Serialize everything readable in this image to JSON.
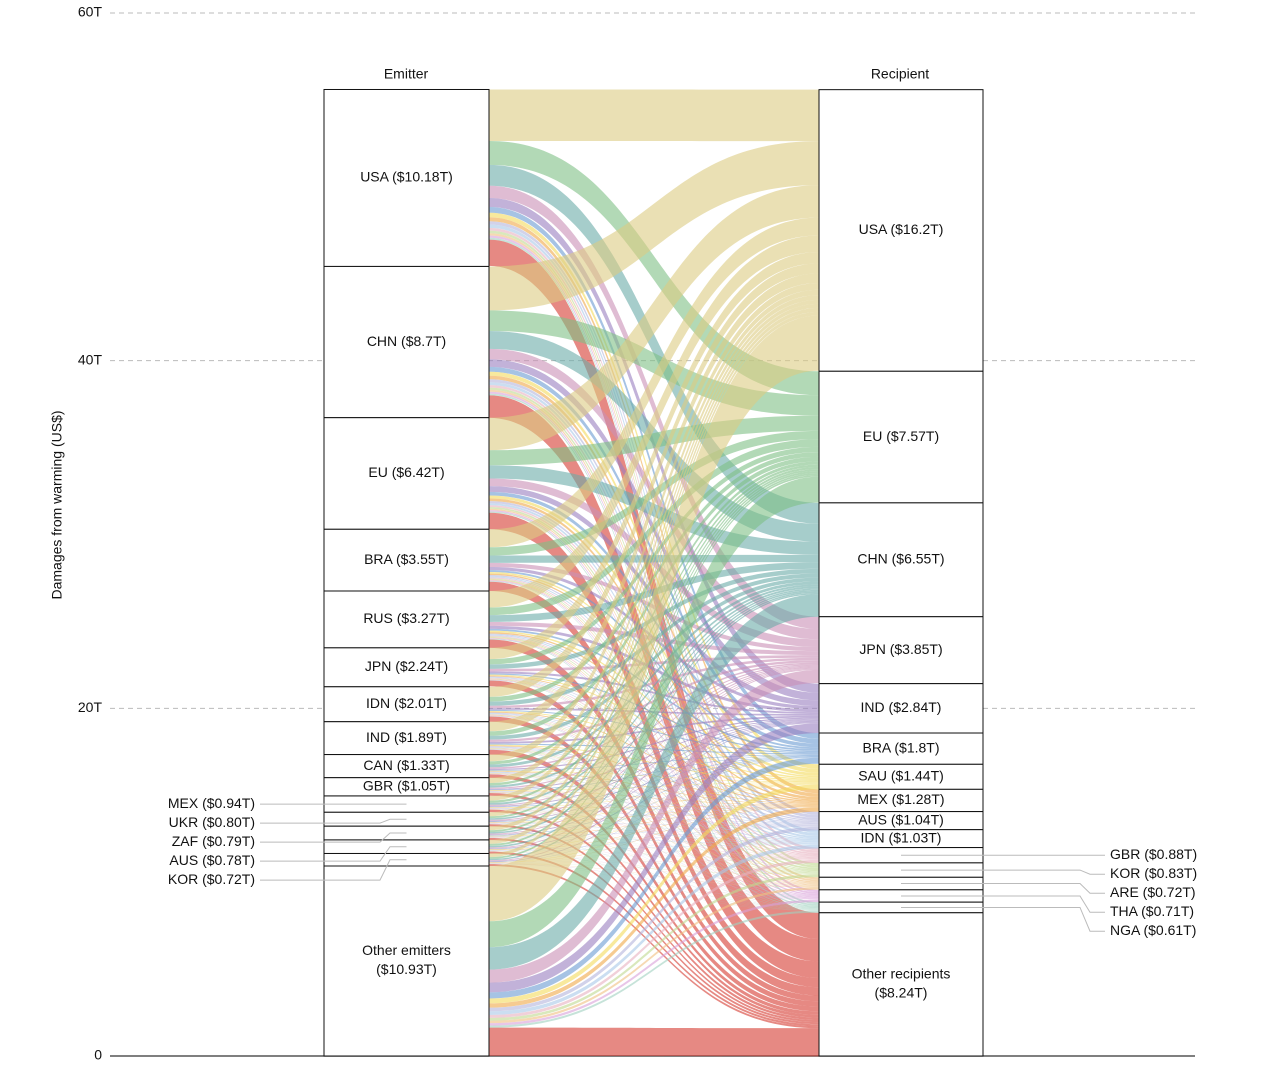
{
  "chart_data": {
    "type": "alluvial",
    "y_label": "Damages from warming (US$)",
    "ylim": [
      0,
      60
    ],
    "yticks": [
      0,
      {
        "value": 20,
        "label": "20T"
      },
      {
        "value": 40,
        "label": "40T"
      },
      {
        "value": 60,
        "label": "60T"
      }
    ],
    "grid": true,
    "emitter_title": "Emitter",
    "recipient_title": "Recipient",
    "emitters": [
      {
        "label": "USA ($10.18T)",
        "value": 10.18
      },
      {
        "label": "CHN ($8.7T)",
        "value": 8.7
      },
      {
        "label": "EU ($6.42T)",
        "value": 6.42
      },
      {
        "label": "BRA ($3.55T)",
        "value": 3.55
      },
      {
        "label": "RUS ($3.27T)",
        "value": 3.27
      },
      {
        "label": "JPN ($2.24T)",
        "value": 2.24
      },
      {
        "label": "IDN ($2.01T)",
        "value": 2.01
      },
      {
        "label": "IND ($1.89T)",
        "value": 1.89
      },
      {
        "label": "CAN ($1.33T)",
        "value": 1.33
      },
      {
        "label": "GBR ($1.05T)",
        "value": 1.05
      },
      {
        "label": "MEX ($0.94T)",
        "value": 0.94
      },
      {
        "label": "UKR ($0.80T)",
        "value": 0.8
      },
      {
        "label": "ZAF ($0.79T)",
        "value": 0.79
      },
      {
        "label": "AUS ($0.78T)",
        "value": 0.78
      },
      {
        "label": "KOR ($0.72T)",
        "value": 0.72
      },
      {
        "label": [
          "Other emitters",
          "($10.93T)"
        ],
        "value": 10.93
      }
    ],
    "recipients": [
      {
        "label": "USA ($16.2T)",
        "value": 16.2,
        "color": "#dccb82"
      },
      {
        "label": "EU ($7.57T)",
        "value": 7.57,
        "color": "#7fbf85"
      },
      {
        "label": "CHN ($6.55T)",
        "value": 6.55,
        "color": "#6aaca8"
      },
      {
        "label": "JPN ($3.85T)",
        "value": 3.85,
        "color": "#c98fb5"
      },
      {
        "label": "IND ($2.84T)",
        "value": 2.84,
        "color": "#9a7fc0"
      },
      {
        "label": "BRA ($1.8T)",
        "value": 1.8,
        "color": "#6b9bd2"
      },
      {
        "label": "SAU ($1.44T)",
        "value": 1.44,
        "color": "#f3da5c"
      },
      {
        "label": "MEX ($1.28T)",
        "value": 1.28,
        "color": "#f0a848"
      },
      {
        "label": "AUS ($1.04T)",
        "value": 1.04,
        "color": "#b4b4dc"
      },
      {
        "label": "IDN ($1.03T)",
        "value": 1.03,
        "color": "#a8c8e8"
      },
      {
        "label": "GBR ($0.88T)",
        "value": 0.88,
        "color": "#e8b0c0"
      },
      {
        "label": "KOR ($0.83T)",
        "value": 0.83,
        "color": "#c0d890"
      },
      {
        "label": "ARE ($0.72T)",
        "value": 0.72,
        "color": "#f0c080"
      },
      {
        "label": "THA ($0.71T)",
        "value": 0.71,
        "color": "#d8a0d8"
      },
      {
        "label": "NGA ($0.61T)",
        "value": 0.61,
        "color": "#a0d0c0"
      },
      {
        "label": [
          "Other recipients",
          "($8.24T)"
        ],
        "value": 8.24,
        "color": "#d63a30"
      }
    ],
    "flows": [
      [
        2.96,
        1.38,
        1.2,
        0.7,
        0.52,
        0.33,
        0.26,
        0.23,
        0.19,
        0.19,
        0.16,
        0.15,
        0.13,
        0.13,
        0.11,
        1.51
      ],
      [
        2.53,
        1.18,
        1.03,
        0.6,
        0.44,
        0.28,
        0.23,
        0.2,
        0.17,
        0.17,
        0.14,
        0.13,
        0.11,
        0.11,
        0.1,
        1.29
      ],
      [
        1.87,
        0.87,
        0.76,
        0.44,
        0.33,
        0.21,
        0.17,
        0.15,
        0.12,
        0.12,
        0.1,
        0.1,
        0.08,
        0.08,
        0.07,
        0.95
      ],
      [
        1.03,
        0.48,
        0.42,
        0.24,
        0.18,
        0.11,
        0.09,
        0.08,
        0.07,
        0.07,
        0.06,
        0.05,
        0.05,
        0.05,
        0.04,
        0.53
      ],
      [
        0.95,
        0.44,
        0.39,
        0.23,
        0.17,
        0.1,
        0.09,
        0.08,
        0.06,
        0.06,
        0.05,
        0.05,
        0.04,
        0.04,
        0.04,
        0.48
      ],
      [
        0.65,
        0.3,
        0.26,
        0.15,
        0.11,
        0.07,
        0.06,
        0.05,
        0.04,
        0.04,
        0.04,
        0.03,
        0.03,
        0.03,
        0.02,
        0.33
      ],
      [
        0.58,
        0.27,
        0.24,
        0.14,
        0.1,
        0.06,
        0.05,
        0.05,
        0.04,
        0.04,
        0.03,
        0.03,
        0.03,
        0.03,
        0.02,
        0.3
      ],
      [
        0.55,
        0.26,
        0.22,
        0.13,
        0.1,
        0.06,
        0.05,
        0.04,
        0.04,
        0.04,
        0.03,
        0.03,
        0.02,
        0.02,
        0.02,
        0.28
      ],
      [
        0.39,
        0.18,
        0.16,
        0.09,
        0.07,
        0.04,
        0.03,
        0.03,
        0.03,
        0.03,
        0.02,
        0.02,
        0.02,
        0.02,
        0.01,
        0.2
      ],
      [
        0.31,
        0.14,
        0.12,
        0.07,
        0.05,
        0.03,
        0.03,
        0.02,
        0.02,
        0.02,
        0.02,
        0.02,
        0.01,
        0.01,
        0.01,
        0.16
      ],
      [
        0.27,
        0.13,
        0.11,
        0.06,
        0.05,
        0.03,
        0.02,
        0.02,
        0.02,
        0.02,
        0.02,
        0.01,
        0.01,
        0.01,
        0.01,
        0.14
      ],
      [
        0.23,
        0.11,
        0.09,
        0.06,
        0.04,
        0.03,
        0.02,
        0.02,
        0.02,
        0.02,
        0.01,
        0.01,
        0.01,
        0.01,
        0.01,
        0.12
      ],
      [
        0.23,
        0.11,
        0.09,
        0.05,
        0.04,
        0.03,
        0.02,
        0.02,
        0.02,
        0.02,
        0.01,
        0.01,
        0.01,
        0.01,
        0.01,
        0.12
      ],
      [
        0.23,
        0.11,
        0.09,
        0.05,
        0.04,
        0.02,
        0.02,
        0.02,
        0.02,
        0.02,
        0.01,
        0.01,
        0.01,
        0.01,
        0.01,
        0.12
      ],
      [
        0.21,
        0.1,
        0.08,
        0.05,
        0.04,
        0.02,
        0.02,
        0.02,
        0.01,
        0.01,
        0.01,
        0.01,
        0.01,
        0.01,
        0.01,
        0.11
      ],
      [
        3.18,
        1.49,
        1.29,
        0.75,
        0.56,
        0.35,
        0.28,
        0.25,
        0.21,
        0.21,
        0.17,
        0.16,
        0.14,
        0.14,
        0.12,
        1.62
      ]
    ]
  }
}
